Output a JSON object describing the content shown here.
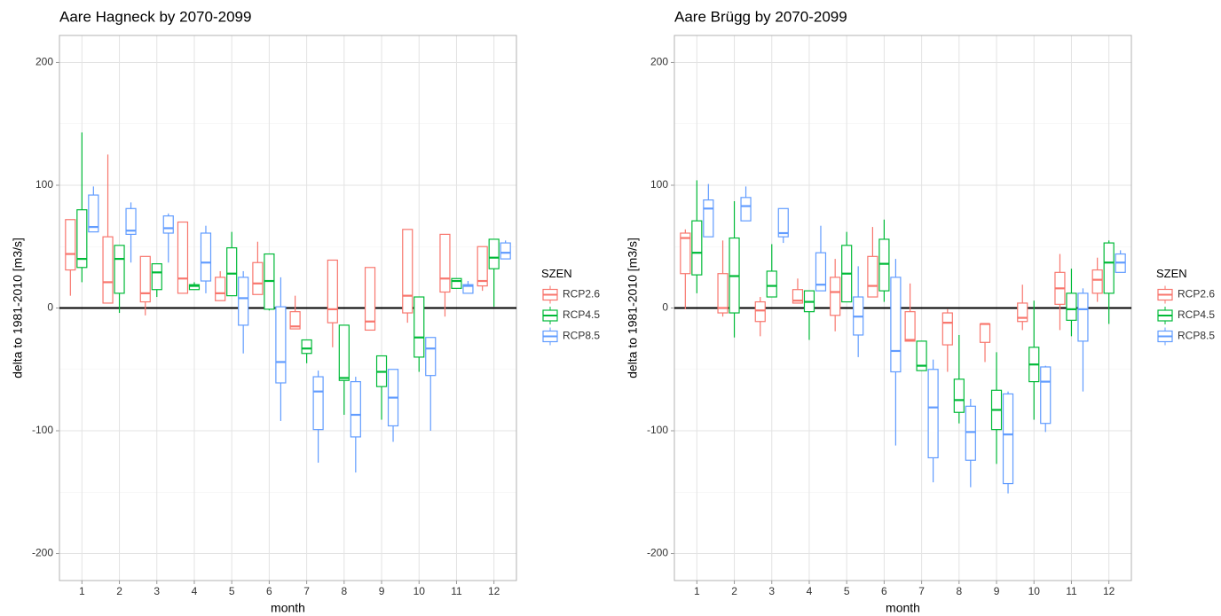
{
  "chart_data": [
    {
      "type": "boxplot",
      "title": "Aare Hagneck by 2070-2099",
      "x_label": "month",
      "y_label": "delta to 1981-2010 [m3/s]",
      "legend_title": "SZEN",
      "legend_position": "right",
      "grid": true,
      "ylim": [
        -222,
        222
      ],
      "yticks": [
        -200,
        -100,
        0,
        100,
        200
      ],
      "yminor": [
        -150,
        -50,
        50,
        150
      ],
      "reference_line": 0,
      "categories": [
        "1",
        "2",
        "3",
        "4",
        "5",
        "6",
        "7",
        "8",
        "9",
        "10",
        "11",
        "12"
      ],
      "series": [
        {
          "name": "RCP2.6",
          "color": "#F8766D",
          "values": [
            [
              10,
              31,
              44,
              72,
              72
            ],
            [
              4,
              4,
              21,
              58,
              125
            ],
            [
              -6,
              5,
              12,
              42,
              42
            ],
            [
              12,
              12,
              24,
              70,
              70
            ],
            [
              6,
              6,
              12,
              25,
              30
            ],
            [
              11,
              11,
              20,
              37,
              54
            ],
            [
              -17,
              -17,
              -15,
              -3,
              10
            ],
            [
              -32,
              -12,
              -1,
              39,
              39
            ],
            [
              -18,
              -18,
              -11,
              33,
              33
            ],
            [
              -12,
              -4,
              10,
              64,
              64
            ],
            [
              -7,
              13,
              24,
              60,
              60
            ],
            [
              14,
              18,
              22,
              50,
              50
            ]
          ]
        },
        {
          "name": "RCP4.5",
          "color": "#00BA38",
          "values": [
            [
              21,
              33,
              40,
              80,
              143
            ],
            [
              -4,
              12,
              40,
              51,
              51
            ],
            [
              9,
              15,
              29,
              36,
              36
            ],
            [
              15,
              15,
              18,
              19,
              21
            ],
            [
              10,
              10,
              28,
              49,
              62
            ],
            [
              -2,
              -1,
              22,
              44,
              44
            ],
            [
              -45,
              -37,
              -33,
              -26,
              -26
            ],
            [
              -87,
              -59,
              -57,
              -14,
              -14
            ],
            [
              -91,
              -64,
              -52,
              -39,
              -39
            ],
            [
              -52,
              -40,
              -24,
              9,
              9
            ],
            [
              16,
              16,
              22,
              24,
              24
            ],
            [
              1,
              32,
              41,
              56,
              56
            ]
          ]
        },
        {
          "name": "RCP8.5",
          "color": "#619CFF",
          "values": [
            [
              62,
              62,
              66,
              92,
              99
            ],
            [
              37,
              60,
              63,
              81,
              86
            ],
            [
              37,
              61,
              65,
              75,
              77
            ],
            [
              12,
              22,
              37,
              61,
              67
            ],
            [
              -37,
              -14,
              8,
              25,
              30
            ],
            [
              -92,
              -61,
              -44,
              1,
              25
            ],
            [
              -126,
              -99,
              -68,
              -56,
              -51
            ],
            [
              -134,
              -105,
              -87,
              -60,
              -56
            ],
            [
              -109,
              -96,
              -73,
              -50,
              -50
            ],
            [
              -100,
              -55,
              -33,
              -24,
              -24
            ],
            [
              12,
              12,
              18,
              19,
              22
            ],
            [
              40,
              40,
              45,
              53,
              55
            ]
          ]
        }
      ]
    },
    {
      "type": "boxplot",
      "title": "Aare Brügg by 2070-2099",
      "x_label": "month",
      "y_label": "delta to 1981-2010 [m3/s]",
      "legend_title": "SZEN",
      "legend_position": "right",
      "grid": true,
      "ylim": [
        -222,
        222
      ],
      "yticks": [
        -200,
        -100,
        0,
        100,
        200
      ],
      "yminor": [
        -150,
        -50,
        50,
        150
      ],
      "reference_line": 0,
      "categories": [
        "1",
        "2",
        "3",
        "4",
        "5",
        "6",
        "7",
        "8",
        "9",
        "10",
        "11",
        "12"
      ],
      "series": [
        {
          "name": "RCP2.6",
          "color": "#F8766D",
          "values": [
            [
              -1,
              28,
              57,
              61,
              64
            ],
            [
              -7,
              -4,
              0,
              28,
              55
            ],
            [
              -23,
              -11,
              -2,
              5,
              9
            ],
            [
              4,
              4,
              6,
              15,
              24
            ],
            [
              -19,
              -6,
              13,
              25,
              40
            ],
            [
              9,
              9,
              18,
              42,
              66
            ],
            [
              -27,
              -27,
              -26,
              -3,
              20
            ],
            [
              -52,
              -30,
              -12,
              -4,
              -1
            ],
            [
              -44,
              -28,
              -13,
              -13,
              -13
            ],
            [
              -18,
              -11,
              -8,
              4,
              19
            ],
            [
              -18,
              3,
              16,
              29,
              44
            ],
            [
              5,
              12,
              23,
              31,
              41
            ]
          ]
        },
        {
          "name": "RCP4.5",
          "color": "#00BA38",
          "values": [
            [
              12,
              27,
              45,
              71,
              104
            ],
            [
              -24,
              -4,
              26,
              57,
              87
            ],
            [
              9,
              9,
              18,
              30,
              52
            ],
            [
              -26,
              -3,
              5,
              14,
              14
            ],
            [
              5,
              5,
              28,
              51,
              62
            ],
            [
              5,
              14,
              36,
              56,
              72
            ],
            [
              -51,
              -51,
              -47,
              -27,
              -27
            ],
            [
              -94,
              -85,
              -75,
              -58,
              -22
            ],
            [
              -127,
              -99,
              -83,
              -67,
              -36
            ],
            [
              -91,
              -60,
              -46,
              -32,
              6
            ],
            [
              -23,
              -10,
              -1,
              12,
              32
            ],
            [
              -13,
              12,
              37,
              53,
              55
            ]
          ]
        },
        {
          "name": "RCP8.5",
          "color": "#619CFF",
          "values": [
            [
              58,
              58,
              81,
              88,
              101
            ],
            [
              71,
              71,
              83,
              90,
              99
            ],
            [
              53,
              58,
              61,
              81,
              81
            ],
            [
              14,
              14,
              19,
              45,
              67
            ],
            [
              -40,
              -22,
              -7,
              9,
              34
            ],
            [
              -112,
              -52,
              -35,
              25,
              40
            ],
            [
              -142,
              -122,
              -81,
              -50,
              -42
            ],
            [
              -146,
              -124,
              -101,
              -80,
              -74
            ],
            [
              -151,
              -143,
              -103,
              -70,
              -68
            ],
            [
              -101,
              -94,
              -60,
              -48,
              -47
            ],
            [
              -68,
              -27,
              -1,
              12,
              16
            ],
            [
              29,
              29,
              37,
              44,
              47
            ]
          ]
        }
      ]
    }
  ]
}
